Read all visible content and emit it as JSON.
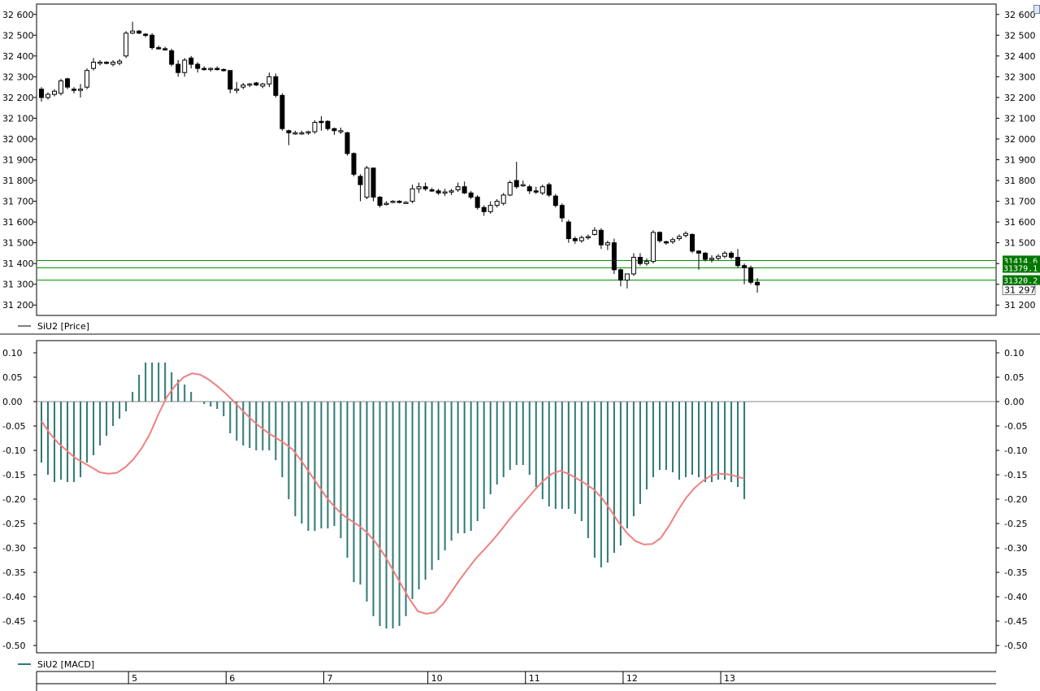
{
  "chart_data": [
    {
      "type": "candlestick",
      "series_name": "SiU2 [Price]",
      "ylim": [
        31150,
        32650
      ],
      "y_ticks": [
        {
          "v": 32600,
          "label": "32 600"
        },
        {
          "v": 32500,
          "label": "32 500"
        },
        {
          "v": 32400,
          "label": "32 400"
        },
        {
          "v": 32300,
          "label": "32 300"
        },
        {
          "v": 32200,
          "label": "32 200"
        },
        {
          "v": 32100,
          "label": "32 100"
        },
        {
          "v": 32000,
          "label": "32 000"
        },
        {
          "v": 31900,
          "label": "31 900"
        },
        {
          "v": 31800,
          "label": "31 800"
        },
        {
          "v": 31700,
          "label": "31 700"
        },
        {
          "v": 31600,
          "label": "31 600"
        },
        {
          "v": 31500,
          "label": "31 500"
        },
        {
          "v": 31400,
          "label": "31 400"
        },
        {
          "v": 31300,
          "label": "31 300"
        },
        {
          "v": 31200,
          "label": "31 200"
        }
      ],
      "levels": [
        {
          "value": 31414.6,
          "label": "31414.6"
        },
        {
          "value": 31379.1,
          "label": "31379.1"
        },
        {
          "value": 31320.2,
          "label": "31320.2"
        }
      ],
      "last_price_label": "31 297",
      "candles": [
        [
          32240,
          32250,
          32180,
          32200
        ],
        [
          32200,
          32225,
          32190,
          32215
        ],
        [
          32215,
          32240,
          32205,
          32230
        ],
        [
          32220,
          32290,
          32210,
          32280
        ],
        [
          32290,
          32295,
          32240,
          32250
        ],
        [
          32240,
          32250,
          32220,
          32235
        ],
        [
          32235,
          32265,
          32200,
          32240
        ],
        [
          32250,
          32340,
          32240,
          32330
        ],
        [
          32340,
          32390,
          32330,
          32370
        ],
        [
          32365,
          32380,
          32355,
          32370
        ],
        [
          32370,
          32375,
          32360,
          32365
        ],
        [
          32360,
          32380,
          32350,
          32370
        ],
        [
          32365,
          32385,
          32355,
          32375
        ],
        [
          32400,
          32520,
          32390,
          32510
        ],
        [
          32510,
          32565,
          32505,
          32520
        ],
        [
          32520,
          32525,
          32505,
          32510
        ],
        [
          32505,
          32510,
          32490,
          32500
        ],
        [
          32500,
          32510,
          32430,
          32440
        ],
        [
          32440,
          32450,
          32430,
          32435
        ],
        [
          32435,
          32445,
          32425,
          32430
        ],
        [
          32425,
          32435,
          32350,
          32360
        ],
        [
          32360,
          32380,
          32300,
          32320
        ],
        [
          32320,
          32390,
          32300,
          32380
        ],
        [
          32390,
          32400,
          32340,
          32360
        ],
        [
          32360,
          32370,
          32320,
          32340
        ],
        [
          32340,
          32350,
          32330,
          32335
        ],
        [
          32335,
          32345,
          32325,
          32340
        ],
        [
          32340,
          32350,
          32330,
          32335
        ],
        [
          32335,
          32340,
          32325,
          32330
        ],
        [
          32330,
          32330,
          32220,
          32240
        ],
        [
          32240,
          32275,
          32220,
          32240
        ],
        [
          32250,
          32270,
          32240,
          32260
        ],
        [
          32260,
          32270,
          32250,
          32265
        ],
        [
          32270,
          32275,
          32255,
          32260
        ],
        [
          32255,
          32270,
          32245,
          32265
        ],
        [
          32265,
          32320,
          32250,
          32300
        ],
        [
          32300,
          32315,
          32200,
          32210
        ],
        [
          32210,
          32220,
          32040,
          32050
        ],
        [
          32040,
          32045,
          31970,
          32030
        ],
        [
          32030,
          32040,
          32020,
          32030
        ],
        [
          32030,
          32040,
          32020,
          32030
        ],
        [
          32030,
          32040,
          32020,
          32035
        ],
        [
          32035,
          32090,
          32025,
          32080
        ],
        [
          32085,
          32110,
          32040,
          32080
        ],
        [
          32085,
          32090,
          32040,
          32050
        ],
        [
          32050,
          32055,
          32020,
          32040
        ],
        [
          32040,
          32055,
          32025,
          32040
        ],
        [
          32030,
          32035,
          31920,
          31930
        ],
        [
          31930,
          31935,
          31820,
          31830
        ],
        [
          31820,
          31830,
          31700,
          31780
        ],
        [
          31720,
          31870,
          31710,
          31860
        ],
        [
          31860,
          31860,
          31700,
          31720
        ],
        [
          31720,
          31725,
          31670,
          31680
        ],
        [
          31690,
          31700,
          31680,
          31690
        ],
        [
          31695,
          31705,
          31690,
          31700
        ],
        [
          31700,
          31705,
          31690,
          31695
        ],
        [
          31695,
          31700,
          31690,
          31695
        ],
        [
          31700,
          31780,
          31690,
          31760
        ],
        [
          31760,
          31790,
          31740,
          31770
        ],
        [
          31770,
          31790,
          31750,
          31760
        ],
        [
          31755,
          31765,
          31745,
          31750
        ],
        [
          31750,
          31760,
          31730,
          31740
        ],
        [
          31740,
          31760,
          31725,
          31745
        ],
        [
          31745,
          31760,
          31730,
          31750
        ],
        [
          31755,
          31790,
          31745,
          31770
        ],
        [
          31770,
          31795,
          31735,
          31740
        ],
        [
          31740,
          31750,
          31710,
          31720
        ],
        [
          31720,
          31730,
          31660,
          31670
        ],
        [
          31670,
          31680,
          31630,
          31650
        ],
        [
          31650,
          31700,
          31640,
          31680
        ],
        [
          31680,
          31710,
          31670,
          31700
        ],
        [
          31690,
          31740,
          31680,
          31730
        ],
        [
          31730,
          31800,
          31725,
          31790
        ],
        [
          31800,
          31890,
          31760,
          31770
        ],
        [
          31780,
          31800,
          31770,
          31780
        ],
        [
          31770,
          31780,
          31735,
          31750
        ],
        [
          31750,
          31770,
          31735,
          31745
        ],
        [
          31740,
          31780,
          31730,
          31770
        ],
        [
          31780,
          31790,
          31720,
          31730
        ],
        [
          31725,
          31735,
          31670,
          31680
        ],
        [
          31680,
          31690,
          31600,
          31620
        ],
        [
          31600,
          31610,
          31500,
          31520
        ],
        [
          31520,
          31530,
          31495,
          31510
        ],
        [
          31510,
          31535,
          31500,
          31525
        ],
        [
          31525,
          31540,
          31515,
          31530
        ],
        [
          31540,
          31575,
          31535,
          31560
        ],
        [
          31560,
          31570,
          31470,
          31490
        ],
        [
          31490,
          31510,
          31465,
          31500
        ],
        [
          31500,
          31520,
          31350,
          31370
        ],
        [
          31370,
          31375,
          31290,
          31320
        ],
        [
          31320,
          31340,
          31280,
          31350
        ],
        [
          31350,
          31450,
          31340,
          31430
        ],
        [
          31430,
          31450,
          31390,
          31400
        ],
        [
          31400,
          31425,
          31390,
          31410
        ],
        [
          31410,
          31560,
          31400,
          31550
        ],
        [
          31550,
          31555,
          31500,
          31510
        ],
        [
          31505,
          31510,
          31490,
          31500
        ],
        [
          31505,
          31525,
          31495,
          31515
        ],
        [
          31520,
          31540,
          31510,
          31530
        ],
        [
          31535,
          31555,
          31525,
          31545
        ],
        [
          31540,
          31545,
          31450,
          31460
        ],
        [
          31460,
          31465,
          31370,
          31450
        ],
        [
          31450,
          31455,
          31410,
          31420
        ],
        [
          31420,
          31440,
          31405,
          31425
        ],
        [
          31425,
          31445,
          31415,
          31435
        ],
        [
          31435,
          31460,
          31425,
          31450
        ],
        [
          31450,
          31460,
          31420,
          31430
        ],
        [
          31430,
          31470,
          31380,
          31390
        ],
        [
          31390,
          31400,
          31300,
          31380
        ],
        [
          31380,
          31390,
          31300,
          31310
        ],
        [
          31310,
          31330,
          31260,
          31297
        ]
      ]
    },
    {
      "type": "bar+line",
      "series_name": "SiU2 [MACD]",
      "ylim": [
        -0.515,
        0.125
      ],
      "y_ticks": [
        {
          "v": 0.1,
          "label": "0.10"
        },
        {
          "v": 0.05,
          "label": "0.05"
        },
        {
          "v": 0.0,
          "label": "0.00"
        },
        {
          "v": -0.05,
          "label": "-0.05"
        },
        {
          "v": -0.1,
          "label": "-0.10"
        },
        {
          "v": -0.15,
          "label": "-0.15"
        },
        {
          "v": -0.2,
          "label": "-0.20"
        },
        {
          "v": -0.25,
          "label": "-0.25"
        },
        {
          "v": -0.3,
          "label": "-0.30"
        },
        {
          "v": -0.35,
          "label": "-0.35"
        },
        {
          "v": -0.4,
          "label": "-0.40"
        },
        {
          "v": -0.45,
          "label": "-0.45"
        },
        {
          "v": -0.5,
          "label": "-0.50"
        }
      ],
      "macd_histogram": [
        -0.125,
        -0.15,
        -0.165,
        -0.16,
        -0.165,
        -0.165,
        -0.155,
        -0.125,
        -0.11,
        -0.09,
        -0.07,
        -0.05,
        -0.035,
        -0.02,
        0.02,
        0.055,
        0.08,
        0.08,
        0.08,
        0.08,
        0.06,
        0.045,
        0.035,
        0.02,
        0.0,
        -0.005,
        -0.01,
        -0.015,
        -0.03,
        -0.065,
        -0.08,
        -0.09,
        -0.095,
        -0.1,
        -0.1,
        -0.1,
        -0.12,
        -0.155,
        -0.2,
        -0.235,
        -0.25,
        -0.265,
        -0.265,
        -0.26,
        -0.26,
        -0.255,
        -0.28,
        -0.32,
        -0.37,
        -0.375,
        -0.41,
        -0.44,
        -0.46,
        -0.465,
        -0.465,
        -0.46,
        -0.44,
        -0.405,
        -0.385,
        -0.365,
        -0.345,
        -0.325,
        -0.305,
        -0.285,
        -0.27,
        -0.27,
        -0.265,
        -0.245,
        -0.22,
        -0.19,
        -0.17,
        -0.155,
        -0.14,
        -0.13,
        -0.13,
        -0.15,
        -0.175,
        -0.2,
        -0.215,
        -0.22,
        -0.22,
        -0.22,
        -0.23,
        -0.245,
        -0.28,
        -0.32,
        -0.34,
        -0.33,
        -0.31,
        -0.295,
        -0.26,
        -0.235,
        -0.21,
        -0.18,
        -0.155,
        -0.14,
        -0.14,
        -0.145,
        -0.16,
        -0.155,
        -0.15,
        -0.155,
        -0.165,
        -0.165,
        -0.16,
        -0.16,
        -0.165,
        -0.175,
        -0.2
      ],
      "signal_line": [
        -0.04,
        -0.065,
        -0.085,
        -0.1,
        -0.115,
        -0.125,
        -0.135,
        -0.145,
        -0.148,
        -0.146,
        -0.135,
        -0.118,
        -0.095,
        -0.065,
        -0.025,
        0.01,
        0.033,
        0.05,
        0.058,
        0.055,
        0.045,
        0.032,
        0.017,
        0.0,
        -0.018,
        -0.035,
        -0.05,
        -0.063,
        -0.074,
        -0.085,
        -0.098,
        -0.12,
        -0.145,
        -0.17,
        -0.195,
        -0.215,
        -0.232,
        -0.244,
        -0.255,
        -0.27,
        -0.29,
        -0.315,
        -0.345,
        -0.375,
        -0.405,
        -0.43,
        -0.435,
        -0.432,
        -0.415,
        -0.39,
        -0.365,
        -0.342,
        -0.32,
        -0.302,
        -0.283,
        -0.262,
        -0.24,
        -0.22,
        -0.2,
        -0.18,
        -0.162,
        -0.148,
        -0.142,
        -0.148,
        -0.158,
        -0.168,
        -0.18,
        -0.198,
        -0.222,
        -0.248,
        -0.27,
        -0.286,
        -0.293,
        -0.292,
        -0.28,
        -0.255,
        -0.225,
        -0.198,
        -0.178,
        -0.163,
        -0.152,
        -0.148,
        -0.149,
        -0.153,
        -0.158
      ],
      "bar_color": "#2e7a74",
      "line_color": "#f08080"
    }
  ],
  "x_axis": {
    "labels": [
      {
        "label": "5",
        "index": 14
      },
      {
        "label": "6",
        "index": 29
      },
      {
        "label": "7",
        "index": 44
      },
      {
        "label": "10",
        "index": 60
      },
      {
        "label": "11",
        "index": 75
      },
      {
        "label": "12",
        "index": 90
      },
      {
        "label": "13",
        "index": 105
      }
    ]
  },
  "legend": {
    "price": "SiU2 [Price]",
    "macd": "SiU2 [MACD]"
  },
  "colors": {
    "level_line": "#009900",
    "level_tag_bg": "#007700",
    "candle": "#000000"
  }
}
